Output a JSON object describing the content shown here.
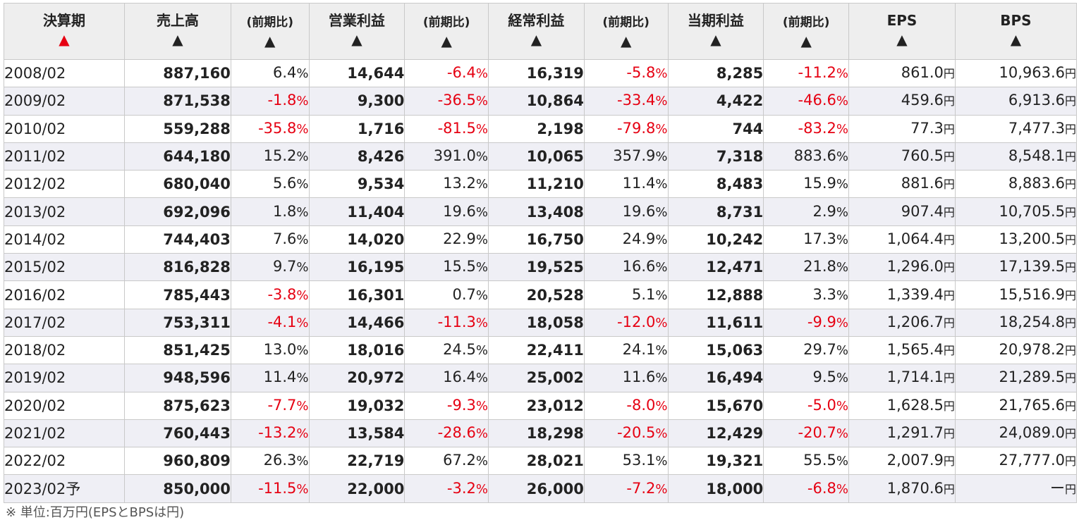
{
  "table": {
    "headers": [
      {
        "label": "決算期",
        "sort": "▲",
        "active": true
      },
      {
        "label": "売上高",
        "sort": "▲"
      },
      {
        "label": "(前期比)",
        "sort": "▲",
        "small": true
      },
      {
        "label": "営業利益",
        "sort": "▲"
      },
      {
        "label": "(前期比)",
        "sort": "▲",
        "small": true
      },
      {
        "label": "経常利益",
        "sort": "▲"
      },
      {
        "label": "(前期比)",
        "sort": "▲",
        "small": true
      },
      {
        "label": "当期利益",
        "sort": "▲"
      },
      {
        "label": "(前期比)",
        "sort": "▲",
        "small": true
      },
      {
        "label": "EPS",
        "sort": "▲"
      },
      {
        "label": "BPS",
        "sort": "▲"
      }
    ],
    "pct_unit": "%",
    "money_unit": "円",
    "rows": [
      {
        "period": "2008/02",
        "sales": "887,160",
        "sales_pct": "6.4",
        "op": "14,644",
        "op_pct": "-6.4",
        "ord": "16,319",
        "ord_pct": "-5.8",
        "net": "8,285",
        "net_pct": "-11.2",
        "eps": "861.0",
        "bps": "10,963.6"
      },
      {
        "period": "2009/02",
        "sales": "871,538",
        "sales_pct": "-1.8",
        "op": "9,300",
        "op_pct": "-36.5",
        "ord": "10,864",
        "ord_pct": "-33.4",
        "net": "4,422",
        "net_pct": "-46.6",
        "eps": "459.6",
        "bps": "6,913.6"
      },
      {
        "period": "2010/02",
        "sales": "559,288",
        "sales_pct": "-35.8",
        "op": "1,716",
        "op_pct": "-81.5",
        "ord": "2,198",
        "ord_pct": "-79.8",
        "net": "744",
        "net_pct": "-83.2",
        "eps": "77.3",
        "bps": "7,477.3"
      },
      {
        "period": "2011/02",
        "sales": "644,180",
        "sales_pct": "15.2",
        "op": "8,426",
        "op_pct": "391.0",
        "ord": "10,065",
        "ord_pct": "357.9",
        "net": "7,318",
        "net_pct": "883.6",
        "eps": "760.5",
        "bps": "8,548.1"
      },
      {
        "period": "2012/02",
        "sales": "680,040",
        "sales_pct": "5.6",
        "op": "9,534",
        "op_pct": "13.2",
        "ord": "11,210",
        "ord_pct": "11.4",
        "net": "8,483",
        "net_pct": "15.9",
        "eps": "881.6",
        "bps": "8,883.6"
      },
      {
        "period": "2013/02",
        "sales": "692,096",
        "sales_pct": "1.8",
        "op": "11,404",
        "op_pct": "19.6",
        "ord": "13,408",
        "ord_pct": "19.6",
        "net": "8,731",
        "net_pct": "2.9",
        "eps": "907.4",
        "bps": "10,705.5"
      },
      {
        "period": "2014/02",
        "sales": "744,403",
        "sales_pct": "7.6",
        "op": "14,020",
        "op_pct": "22.9",
        "ord": "16,750",
        "ord_pct": "24.9",
        "net": "10,242",
        "net_pct": "17.3",
        "eps": "1,064.4",
        "bps": "13,200.5"
      },
      {
        "period": "2015/02",
        "sales": "816,828",
        "sales_pct": "9.7",
        "op": "16,195",
        "op_pct": "15.5",
        "ord": "19,525",
        "ord_pct": "16.6",
        "net": "12,471",
        "net_pct": "21.8",
        "eps": "1,296.0",
        "bps": "17,139.5"
      },
      {
        "period": "2016/02",
        "sales": "785,443",
        "sales_pct": "-3.8",
        "op": "16,301",
        "op_pct": "0.7",
        "ord": "20,528",
        "ord_pct": "5.1",
        "net": "12,888",
        "net_pct": "3.3",
        "eps": "1,339.4",
        "bps": "15,516.9"
      },
      {
        "period": "2017/02",
        "sales": "753,311",
        "sales_pct": "-4.1",
        "op": "14,466",
        "op_pct": "-11.3",
        "ord": "18,058",
        "ord_pct": "-12.0",
        "net": "11,611",
        "net_pct": "-9.9",
        "eps": "1,206.7",
        "bps": "18,254.8"
      },
      {
        "period": "2018/02",
        "sales": "851,425",
        "sales_pct": "13.0",
        "op": "18,016",
        "op_pct": "24.5",
        "ord": "22,411",
        "ord_pct": "24.1",
        "net": "15,063",
        "net_pct": "29.7",
        "eps": "1,565.4",
        "bps": "20,978.2"
      },
      {
        "period": "2019/02",
        "sales": "948,596",
        "sales_pct": "11.4",
        "op": "20,972",
        "op_pct": "16.4",
        "ord": "25,002",
        "ord_pct": "11.6",
        "net": "16,494",
        "net_pct": "9.5",
        "eps": "1,714.1",
        "bps": "21,289.5"
      },
      {
        "period": "2020/02",
        "sales": "875,623",
        "sales_pct": "-7.7",
        "op": "19,032",
        "op_pct": "-9.3",
        "ord": "23,012",
        "ord_pct": "-8.0",
        "net": "15,670",
        "net_pct": "-5.0",
        "eps": "1,628.5",
        "bps": "21,765.6"
      },
      {
        "period": "2021/02",
        "sales": "760,443",
        "sales_pct": "-13.2",
        "op": "13,584",
        "op_pct": "-28.6",
        "ord": "18,298",
        "ord_pct": "-20.5",
        "net": "12,429",
        "net_pct": "-20.7",
        "eps": "1,291.7",
        "bps": "24,089.0"
      },
      {
        "period": "2022/02",
        "sales": "960,809",
        "sales_pct": "26.3",
        "op": "22,719",
        "op_pct": "67.2",
        "ord": "28,021",
        "ord_pct": "53.1",
        "net": "19,321",
        "net_pct": "55.5",
        "eps": "2,007.9",
        "bps": "27,777.0"
      },
      {
        "period": "2023/02予",
        "sales": "850,000",
        "sales_pct": "-11.5",
        "op": "22,000",
        "op_pct": "-3.2",
        "ord": "26,000",
        "ord_pct": "-7.2",
        "net": "18,000",
        "net_pct": "-6.8",
        "eps": "1,870.6",
        "bps": "ー"
      }
    ]
  },
  "colors": {
    "negative": "#e60012",
    "sort_active": "#e60012",
    "header_bg": "#eeeeee",
    "row_alt_bg": "#efeff5"
  },
  "footnote": "※ 単位:百万円(EPSとBPSは円)"
}
